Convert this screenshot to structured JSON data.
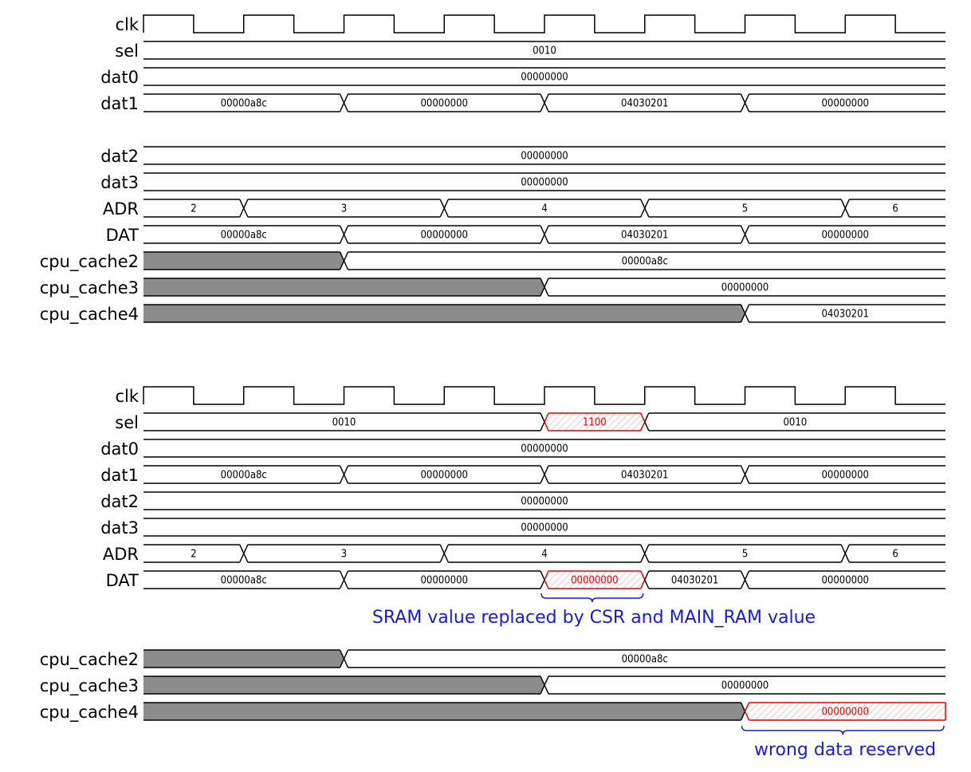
{
  "colors": {
    "line": "#000000",
    "undefined_fill": "#8c8c8c",
    "error": "#e00000",
    "annotation": "#1a1ad6"
  },
  "panels": [
    {
      "id": "panel-1",
      "signals": [
        {
          "name": "clk",
          "kind": "clock"
        },
        {
          "name": "sel",
          "segments": [
            {
              "from": 0,
              "to": 8,
              "value": "0010"
            }
          ]
        },
        {
          "name": "dat0",
          "segments": [
            {
              "from": 0,
              "to": 8,
              "value": "00000000"
            }
          ]
        },
        {
          "name": "dat1",
          "segments": [
            {
              "from": 0,
              "to": 2,
              "value": "00000a8c"
            },
            {
              "from": 2,
              "to": 4,
              "value": "00000000"
            },
            {
              "from": 4,
              "to": 6,
              "value": "04030201"
            },
            {
              "from": 6,
              "to": 8,
              "value": "00000000"
            }
          ]
        },
        {
          "name": "dat2",
          "segments": [
            {
              "from": 0,
              "to": 8,
              "value": "00000000"
            }
          ]
        },
        {
          "name": "dat3",
          "segments": [
            {
              "from": 0,
              "to": 8,
              "value": "00000000"
            }
          ]
        },
        {
          "name": "ADR",
          "segments": [
            {
              "from": 0,
              "to": 1,
              "value": "2"
            },
            {
              "from": 1,
              "to": 3,
              "value": "3"
            },
            {
              "from": 3,
              "to": 5,
              "value": "4"
            },
            {
              "from": 5,
              "to": 7,
              "value": "5"
            },
            {
              "from": 7,
              "to": 8,
              "value": "6"
            }
          ]
        },
        {
          "name": "DAT",
          "segments": [
            {
              "from": 0,
              "to": 2,
              "value": "00000a8c"
            },
            {
              "from": 2,
              "to": 4,
              "value": "00000000"
            },
            {
              "from": 4,
              "to": 6,
              "value": "04030201"
            },
            {
              "from": 6,
              "to": 8,
              "value": "00000000"
            }
          ]
        },
        {
          "name": "cpu_cache2",
          "segments": [
            {
              "from": 0,
              "to": 2,
              "undefined": true
            },
            {
              "from": 2,
              "to": 8,
              "value": "00000a8c"
            }
          ]
        },
        {
          "name": "cpu_cache3",
          "segments": [
            {
              "from": 0,
              "to": 4,
              "undefined": true
            },
            {
              "from": 4,
              "to": 8,
              "value": "00000000"
            }
          ]
        },
        {
          "name": "cpu_cache4",
          "segments": [
            {
              "from": 0,
              "to": 6,
              "undefined": true
            },
            {
              "from": 6,
              "to": 8,
              "value": "04030201"
            }
          ]
        }
      ]
    },
    {
      "id": "panel-2",
      "signals": [
        {
          "name": "clk",
          "kind": "clock"
        },
        {
          "name": "sel",
          "segments": [
            {
              "from": 0,
              "to": 4,
              "value": "0010"
            },
            {
              "from": 4,
              "to": 5,
              "value": "1100",
              "error": true
            },
            {
              "from": 5,
              "to": 8,
              "value": "0010"
            }
          ]
        },
        {
          "name": "dat0",
          "segments": [
            {
              "from": 0,
              "to": 8,
              "value": "00000000"
            }
          ]
        },
        {
          "name": "dat1",
          "segments": [
            {
              "from": 0,
              "to": 2,
              "value": "00000a8c"
            },
            {
              "from": 2,
              "to": 4,
              "value": "00000000"
            },
            {
              "from": 4,
              "to": 6,
              "value": "04030201"
            },
            {
              "from": 6,
              "to": 8,
              "value": "00000000"
            }
          ]
        },
        {
          "name": "dat2",
          "segments": [
            {
              "from": 0,
              "to": 8,
              "value": "00000000"
            }
          ]
        },
        {
          "name": "dat3",
          "segments": [
            {
              "from": 0,
              "to": 8,
              "value": "00000000"
            }
          ]
        },
        {
          "name": "ADR",
          "segments": [
            {
              "from": 0,
              "to": 1,
              "value": "2"
            },
            {
              "from": 1,
              "to": 3,
              "value": "3"
            },
            {
              "from": 3,
              "to": 5,
              "value": "4"
            },
            {
              "from": 5,
              "to": 7,
              "value": "5"
            },
            {
              "from": 7,
              "to": 8,
              "value": "6"
            }
          ]
        },
        {
          "name": "DAT",
          "segments": [
            {
              "from": 0,
              "to": 2,
              "value": "00000a8c"
            },
            {
              "from": 2,
              "to": 4,
              "value": "00000000"
            },
            {
              "from": 4,
              "to": 5,
              "value": "00000000",
              "error": true
            },
            {
              "from": 5,
              "to": 6,
              "value": "04030201"
            },
            {
              "from": 6,
              "to": 8,
              "value": "00000000"
            }
          ]
        }
      ],
      "annotation": {
        "text": "SRAM value replaced by CSR and MAIN_RAM value",
        "from": 4,
        "to": 5
      }
    },
    {
      "id": "panel-3",
      "signals": [
        {
          "name": "cpu_cache2",
          "segments": [
            {
              "from": 0,
              "to": 2,
              "undefined": true
            },
            {
              "from": 2,
              "to": 8,
              "value": "00000a8c"
            }
          ]
        },
        {
          "name": "cpu_cache3",
          "segments": [
            {
              "from": 0,
              "to": 4,
              "undefined": true
            },
            {
              "from": 4,
              "to": 8,
              "value": "00000000"
            }
          ]
        },
        {
          "name": "cpu_cache4",
          "segments": [
            {
              "from": 0,
              "to": 6,
              "undefined": true
            },
            {
              "from": 6,
              "to": 8,
              "value": "00000000",
              "error": true
            }
          ]
        }
      ],
      "annotation": {
        "text": "wrong data reserved",
        "from": 6,
        "to": 8
      }
    }
  ]
}
